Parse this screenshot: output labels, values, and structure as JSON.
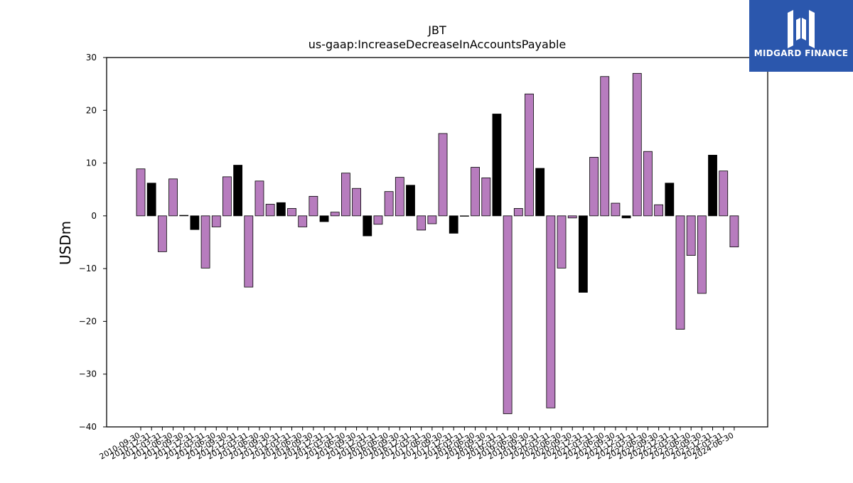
{
  "chart_data": {
    "type": "bar",
    "title": "JBT",
    "subtitle": "us-gaap:IncreaseDecreaseInAccountsPayable",
    "xlabel": "",
    "ylabel": "USDm",
    "ylim": [
      -40,
      30
    ],
    "yticks": [
      30,
      20,
      10,
      0,
      -10,
      -20,
      -30,
      -40
    ],
    "grid": false,
    "legend": "none",
    "categories": [
      "2010-09-30",
      "2010-12-31",
      "2011-03-31",
      "2011-06-30",
      "2011-09-30",
      "2011-12-31",
      "2012-03-31",
      "2012-06-30",
      "2012-09-30",
      "2012-12-31",
      "2013-03-31",
      "2013-06-30",
      "2013-09-30",
      "2013-12-31",
      "2014-03-31",
      "2014-06-30",
      "2014-09-30",
      "2014-12-31",
      "2015-03-31",
      "2015-06-30",
      "2015-09-30",
      "2015-12-31",
      "2016-03-31",
      "2016-06-30",
      "2016-09-30",
      "2016-12-31",
      "2017-03-31",
      "2017-06-30",
      "2017-09-30",
      "2017-12-31",
      "2018-03-31",
      "2018-06-30",
      "2018-09-30",
      "2018-12-31",
      "2019-03-31",
      "2019-06-30",
      "2019-09-30",
      "2019-12-31",
      "2020-03-31",
      "2020-06-30",
      "2020-09-30",
      "2020-12-31",
      "2021-03-31",
      "2021-06-30",
      "2021-09-30",
      "2021-12-31",
      "2022-03-31",
      "2022-06-30",
      "2022-09-30",
      "2022-12-31",
      "2023-03-31",
      "2023-06-30",
      "2023-09-30",
      "2023-12-31",
      "2024-03-31",
      "2024-06-30"
    ],
    "values": [
      8.9,
      6.2,
      -6.8,
      7.0,
      0.1,
      -2.6,
      -9.9,
      -2.1,
      7.4,
      9.6,
      -13.5,
      6.6,
      2.2,
      2.5,
      1.4,
      -2.1,
      3.7,
      -1.1,
      0.7,
      8.1,
      5.2,
      -3.8,
      -1.6,
      4.6,
      7.3,
      5.8,
      -2.7,
      -1.5,
      15.6,
      -3.3,
      0.0,
      9.2,
      7.2,
      19.3,
      -37.5,
      1.4,
      23.1,
      9.0,
      -36.4,
      -9.9,
      -0.4,
      -14.5,
      11.1,
      26.4,
      2.4,
      -0.4,
      27.0,
      12.2,
      2.1,
      6.2,
      -21.5,
      -7.5,
      -14.7,
      11.5,
      8.5,
      -5.9
    ],
    "highlight": [
      false,
      true,
      false,
      false,
      true,
      true,
      false,
      false,
      false,
      true,
      false,
      false,
      false,
      true,
      false,
      false,
      false,
      true,
      false,
      false,
      false,
      true,
      false,
      false,
      false,
      true,
      false,
      false,
      false,
      true,
      false,
      false,
      false,
      true,
      false,
      false,
      false,
      true,
      false,
      false,
      false,
      true,
      false,
      false,
      false,
      true,
      false,
      false,
      false,
      true,
      false,
      false,
      false,
      true,
      false,
      false
    ],
    "colors": {
      "bar": "#b77cbe",
      "highlight_bar": "#000000",
      "edge": "#000000"
    }
  },
  "logo": {
    "text": "MIDGARD FINANCE",
    "bg": "#2b57ad"
  }
}
